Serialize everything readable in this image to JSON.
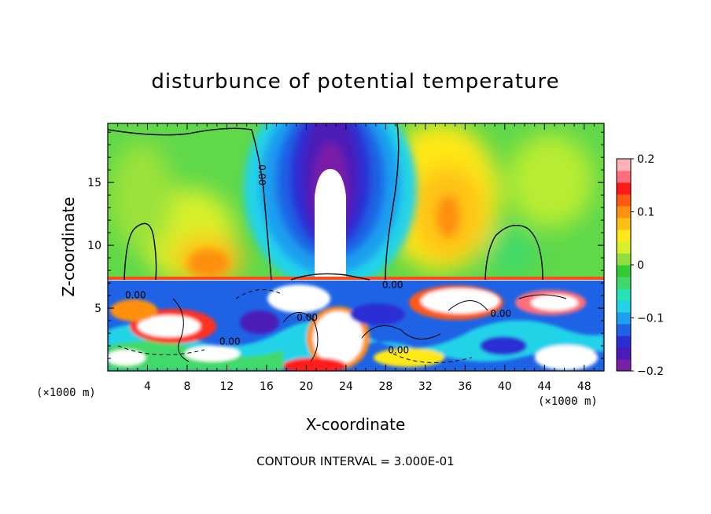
{
  "chart_data": {
    "type": "heatmap",
    "title": "disturbunce of potential temperature",
    "xlabel": "X-coordinate",
    "ylabel": "Z-coordinate",
    "x_unit": "(×1000 m)",
    "z_unit": "(×1000 m)",
    "xlim": [
      0,
      50
    ],
    "ylim": [
      0,
      19.7
    ],
    "x_ticks": [
      4,
      8,
      12,
      16,
      20,
      24,
      28,
      32,
      36,
      40,
      44,
      48
    ],
    "y_ticks": [
      5,
      10,
      15
    ],
    "colorbar": {
      "range": [
        -0.2,
        0.2
      ],
      "tick_values": [
        -0.2,
        -0.1,
        0,
        0.1,
        0.2
      ],
      "tick_labels": [
        "−0.2",
        "−0.1",
        "0",
        "0.1",
        "0.2"
      ],
      "colors": [
        "#7a1fa8",
        "#4b1ab8",
        "#2a2fd4",
        "#1e63e6",
        "#1e9fef",
        "#22d3e8",
        "#27e3b4",
        "#3fd96a",
        "#33cc33",
        "#8fe03c",
        "#d8f02c",
        "#ffe819",
        "#ffc013",
        "#ff9010",
        "#ff5a14",
        "#ff1a1a",
        "#ff6e7a",
        "#ffb0b8"
      ]
    },
    "contour_interval_text": "CONTOUR INTERVAL = 3.000E-01",
    "contour_labels": [
      {
        "text": "0.00",
        "x": 12.3,
        "z": 2.1
      },
      {
        "text": "0.00",
        "x": 29.3,
        "z": 1.4
      },
      {
        "text": "0.00",
        "x": 2.8,
        "z": 5.8
      },
      {
        "text": "0.00",
        "x": 20.1,
        "z": 4.0
      },
      {
        "text": "0.00",
        "x": 28.7,
        "z": 6.6
      },
      {
        "text": "0.00",
        "x": 39.6,
        "z": 4.3
      },
      {
        "text": "0.00",
        "x": 15.2,
        "z": 15.6
      }
    ],
    "grid": false
  }
}
